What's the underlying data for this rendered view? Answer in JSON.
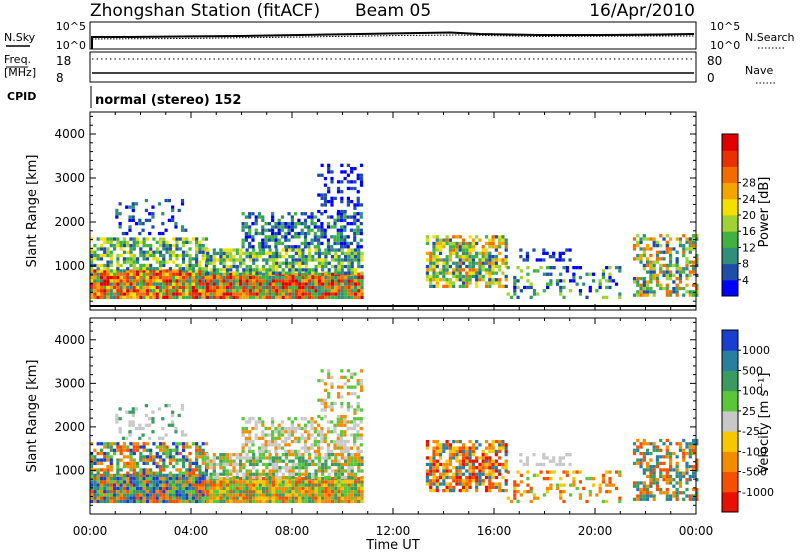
{
  "header": {
    "station": "Zhongshan Station (fitACF)",
    "beam": "Beam 05",
    "date": "16/Apr/2010"
  },
  "sky_panel": {
    "left_label": "N.Sky",
    "right_label": "N.Search",
    "left_ticks": [
      "10^5",
      "10^0"
    ],
    "right_ticks": [
      "10^5",
      "10^0"
    ]
  },
  "freq_panel": {
    "label_line1": "Freq.",
    "label_line2": "[MHz]",
    "left_ticks": [
      "18",
      "8"
    ],
    "right_label": "Nave",
    "right_ticks": [
      "80",
      "0"
    ]
  },
  "cpid": {
    "label": "CPID",
    "text": "normal (stereo) 152"
  },
  "chart_data": [
    {
      "type": "heatmap",
      "name": "power",
      "ylabel": "Slant Range [km]",
      "yticks": [
        "1000",
        "2000",
        "3000",
        "4000"
      ],
      "colorbar_label": "Power [dB]",
      "colorbar_ticks": [
        "4",
        "8",
        "12",
        "16",
        "20",
        "24",
        "28"
      ],
      "colorbar_colors": [
        "#0000ff",
        "#1f4ea8",
        "#2f8f7a",
        "#3fb23f",
        "#9fd232",
        "#f4e000",
        "#f6a400",
        "#f46c00",
        "#e83000",
        "#e00000"
      ]
    },
    {
      "type": "heatmap",
      "name": "velocity",
      "ylabel": "Slant Range [km]",
      "yticks": [
        "1000",
        "2000",
        "3000",
        "4000"
      ],
      "colorbar_label": "Velocity [m s⁻¹]",
      "colorbar_ticks": [
        "1000",
        "500",
        "100",
        "25",
        "-25",
        "-100",
        "-500",
        "-1000"
      ],
      "colorbar_colors": [
        "#1a3fd0",
        "#2a7fa0",
        "#3a9a60",
        "#5bc63a",
        "#c8c8c8",
        "#f6c800",
        "#f48c00",
        "#f45000",
        "#e81000"
      ],
      "xticks": [
        "00:00",
        "04:00",
        "08:00",
        "12:00",
        "16:00",
        "20:00",
        "00:00"
      ],
      "xlabel": "Time UT"
    }
  ]
}
